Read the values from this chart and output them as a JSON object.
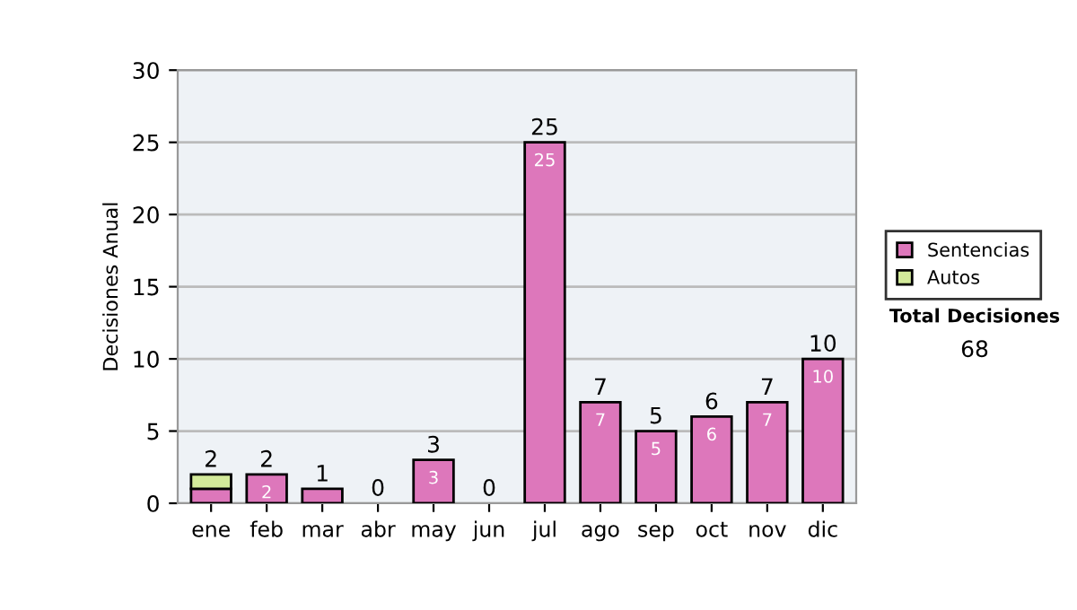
{
  "chart_data": {
    "type": "bar",
    "stacked": true,
    "ylabel": "Decisiones Anual",
    "categories": [
      "ene",
      "feb",
      "mar",
      "abr",
      "may",
      "jun",
      "jul",
      "ago",
      "sep",
      "oct",
      "nov",
      "dic"
    ],
    "series": [
      {
        "name": "Sentencias",
        "color": "#dd77bb",
        "values": [
          1,
          2,
          1,
          0,
          3,
          0,
          25,
          7,
          5,
          6,
          7,
          10
        ],
        "value_labels": [
          null,
          "2",
          null,
          null,
          "3",
          null,
          "25",
          "7",
          "5",
          "6",
          "7",
          "10"
        ]
      },
      {
        "name": "Autos",
        "color": "#d3ea9a",
        "values": [
          1,
          0,
          0,
          0,
          0,
          0,
          0,
          0,
          0,
          0,
          0,
          0
        ]
      }
    ],
    "totals": [
      "2",
      "2",
      "1",
      "0",
      "3",
      "0",
      "25",
      "7",
      "5",
      "6",
      "7",
      "10"
    ],
    "ylim": [
      0,
      30
    ],
    "yticks": [
      0,
      5,
      10,
      15,
      20,
      25,
      30
    ],
    "grid": "y",
    "legend": "right",
    "annotations": [
      "Total Decisiones",
      "68"
    ]
  }
}
